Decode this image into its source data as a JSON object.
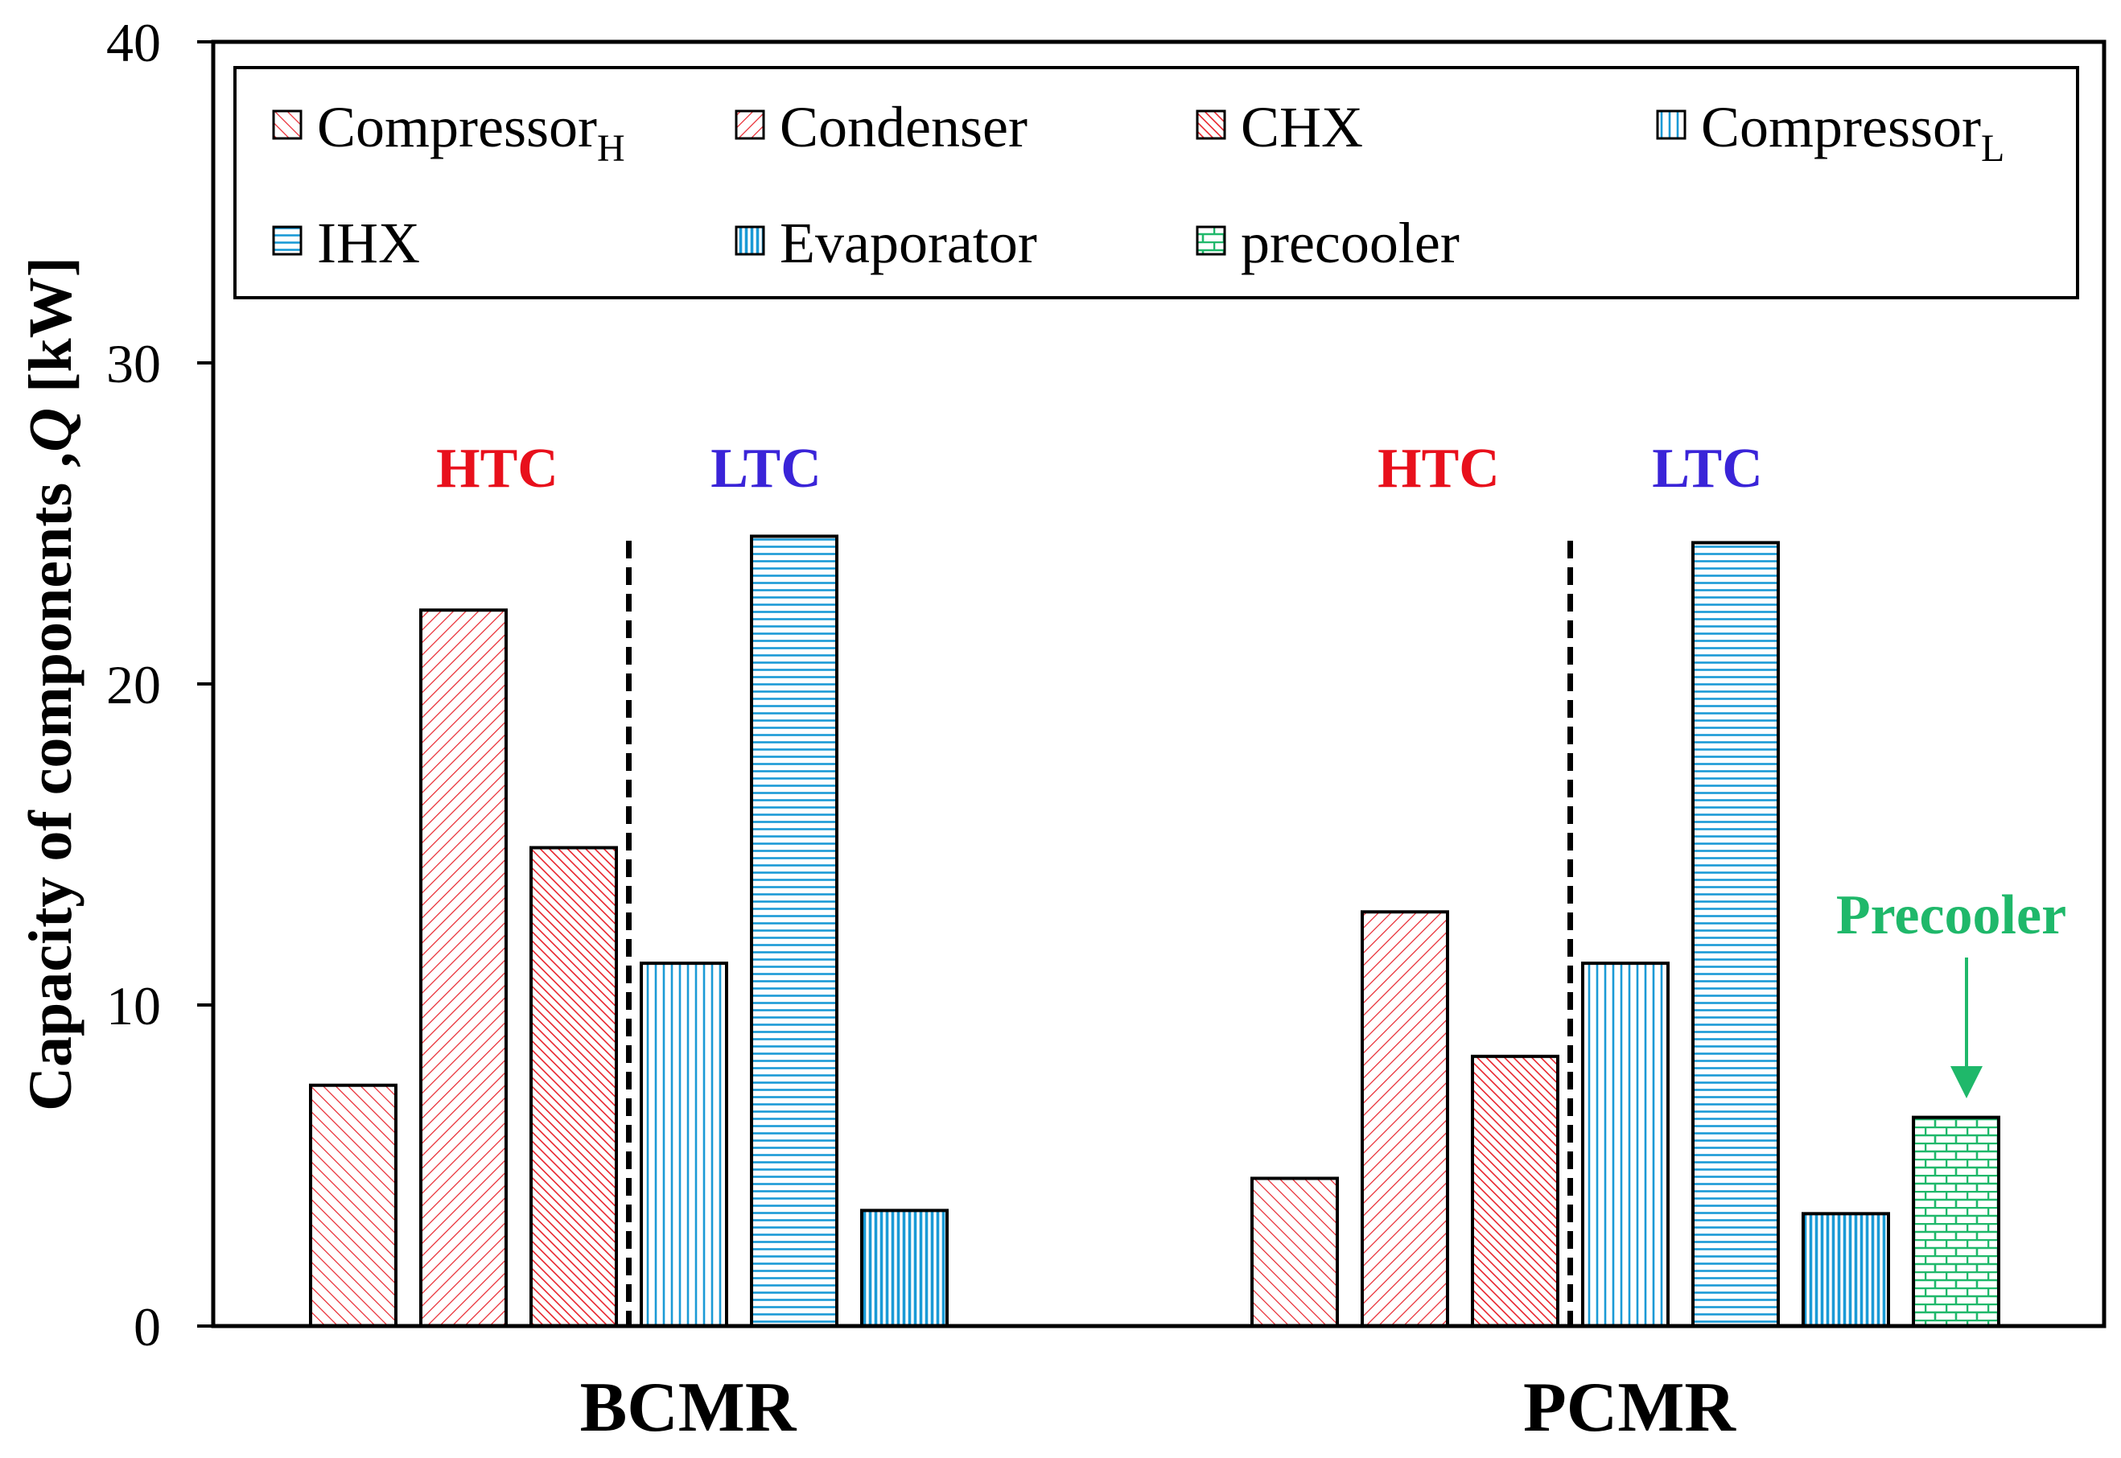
{
  "chart_data": {
    "type": "bar",
    "ylabel": "Capacity of components ,Q [kW]",
    "ylabel_prefix": "Capacity of components ,",
    "ylabel_symbol": "Q",
    "ylabel_unit": " [kW]",
    "ylim": [
      0,
      40
    ],
    "yticks": [
      "0",
      "10",
      "20",
      "30",
      "40"
    ],
    "grid": false,
    "legend_position": "top",
    "groups": [
      {
        "name": "BCMR",
        "htc_label": "HTC",
        "ltc_label": "LTC",
        "bars": [
          {
            "series": "Compressor_H",
            "value": 7.5
          },
          {
            "series": "Condenser",
            "value": 22.3
          },
          {
            "series": "CHX",
            "value": 14.9
          },
          {
            "series": "Compressor_L",
            "value": 11.3
          },
          {
            "series": "IHX",
            "value": 24.6
          },
          {
            "series": "Evaporator",
            "value": 3.6
          }
        ]
      },
      {
        "name": "PCMR",
        "htc_label": "HTC",
        "ltc_label": "LTC",
        "bars": [
          {
            "series": "Compressor_H",
            "value": 4.6
          },
          {
            "series": "Condenser",
            "value": 12.9
          },
          {
            "series": "CHX",
            "value": 8.4
          },
          {
            "series": "Compressor_L",
            "value": 11.3
          },
          {
            "series": "IHX",
            "value": 24.4
          },
          {
            "series": "Evaporator",
            "value": 3.5
          },
          {
            "series": "precooler",
            "value": 6.5
          }
        ]
      }
    ],
    "series": [
      {
        "key": "Compressor_H",
        "name": "Compressor",
        "sub": "H",
        "pattern": "hatch-back-sparse",
        "color": "#e8242c"
      },
      {
        "key": "Condenser",
        "name": "Condenser",
        "sub": "",
        "pattern": "hatch-fwd",
        "color": "#e8242c"
      },
      {
        "key": "CHX",
        "name": "CHX",
        "sub": "",
        "pattern": "hatch-back-dense",
        "color": "#e8242c"
      },
      {
        "key": "Compressor_L",
        "name": "Compressor",
        "sub": "L",
        "pattern": "vertical-lines",
        "color": "#1a9ad6"
      },
      {
        "key": "IHX",
        "name": "IHX",
        "sub": "",
        "pattern": "horizontal-lines",
        "color": "#1a9ad6"
      },
      {
        "key": "Evaporator",
        "name": "Evaporator",
        "sub": "",
        "pattern": "vertical-dense",
        "color": "#1a9ad6"
      },
      {
        "key": "precooler",
        "name": "precooler",
        "sub": "",
        "pattern": "bricks",
        "color": "#1fb86a"
      }
    ],
    "annotations": {
      "precooler_label": "Precooler",
      "precooler_color": "#1fb86a",
      "htc_color": "#e8101c",
      "ltc_color": "#3a24d8"
    }
  }
}
